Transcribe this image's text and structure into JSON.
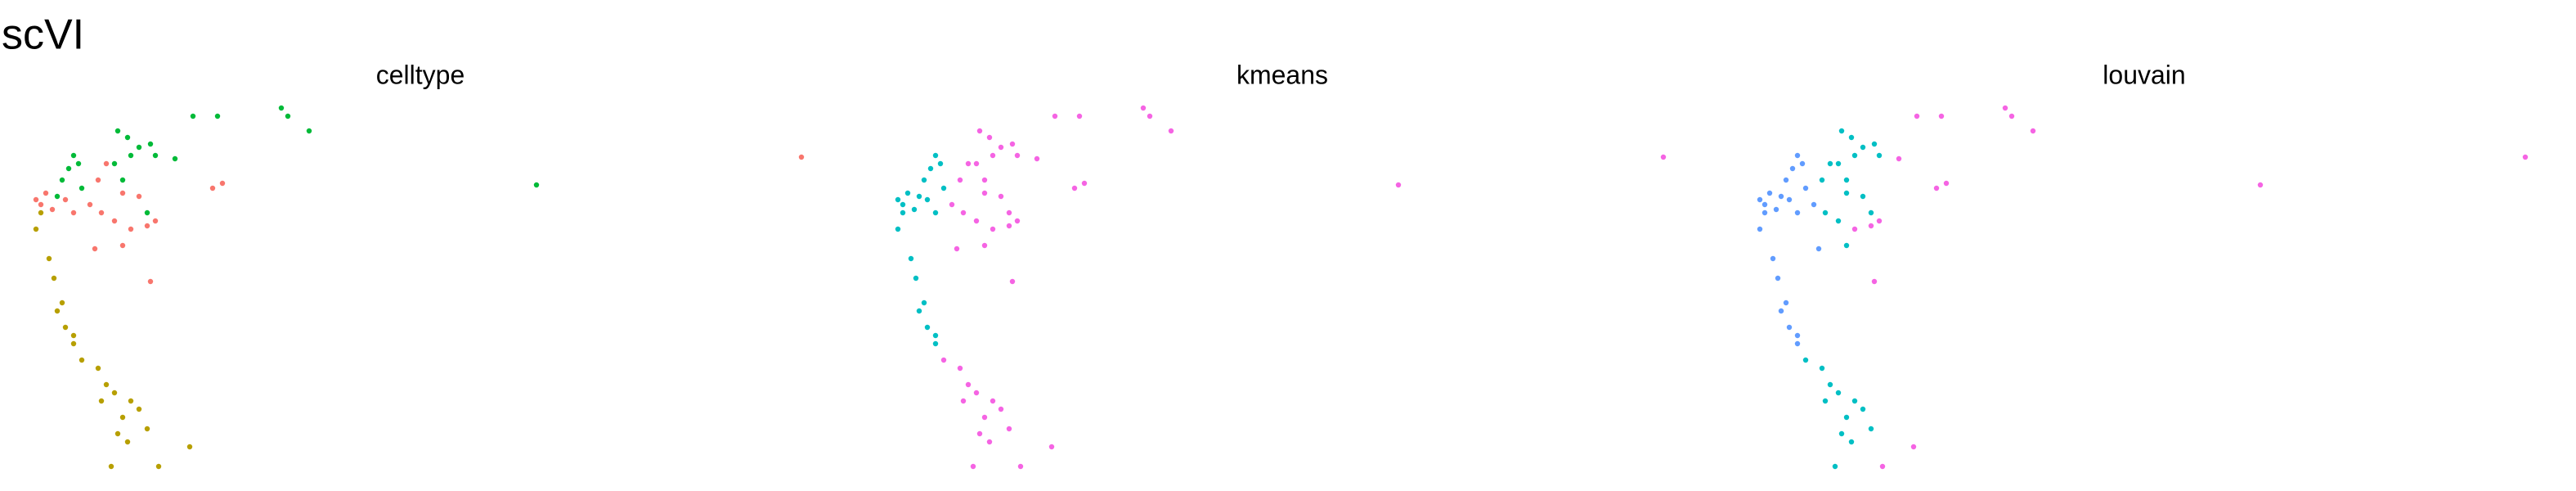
{
  "title": "scVI",
  "chart_data": [
    {
      "type": "scatter",
      "title": "celltype",
      "xlim": [
        0,
        480
      ],
      "ylim": [
        0,
        230
      ],
      "x": [
        98,
        113,
        152,
        156,
        169,
        87,
        308,
        52,
        58,
        65,
        72,
        60,
        75,
        25,
        22,
        28,
        18,
        30,
        15,
        70,
        55,
        50,
        470,
        110,
        116,
        45,
        40,
        55,
        65,
        35,
        42,
        50,
        60,
        70,
        75,
        72,
        38,
        55,
        8,
        5,
        12,
        20,
        2,
        25,
        5,
        2,
        10,
        13,
        18,
        20,
        25,
        30,
        40,
        45,
        50,
        60,
        65,
        55,
        52,
        58,
        48,
        77,
        96,
        70,
        42,
        25,
        15
      ],
      "y": [
        219,
        219,
        224,
        219,
        210,
        193,
        177,
        210,
        206,
        200,
        202,
        195,
        195,
        195,
        187,
        190,
        180,
        175,
        170,
        160,
        180,
        190,
        194,
        175,
        178,
        190,
        180,
        172,
        170,
        165,
        160,
        155,
        150,
        152,
        155,
        118,
        138,
        140,
        172,
        165,
        162,
        168,
        168,
        160,
        160,
        150,
        132,
        120,
        105,
        90,
        80,
        70,
        65,
        55,
        50,
        45,
        40,
        35,
        25,
        20,
        5,
        5,
        17,
        28,
        45,
        85,
        100
      ],
      "palette": [
        "#00BA38",
        "#F8766D",
        "#B79F00"
      ],
      "groups": [
        0,
        0,
        0,
        0,
        0,
        0,
        0,
        0,
        0,
        0,
        0,
        0,
        0,
        0,
        0,
        0,
        0,
        0,
        0,
        0,
        0,
        0,
        1,
        1,
        1,
        1,
        1,
        1,
        1,
        1,
        1,
        1,
        1,
        1,
        1,
        1,
        1,
        1,
        1,
        1,
        1,
        1,
        1,
        1,
        2,
        2,
        2,
        2,
        2,
        2,
        2,
        2,
        2,
        2,
        2,
        2,
        2,
        2,
        2,
        2,
        2,
        2,
        2,
        2,
        2,
        2,
        2
      ]
    },
    {
      "type": "scatter",
      "title": "kmeans",
      "xlim": [
        0,
        480
      ],
      "ylim": [
        0,
        230
      ],
      "x": [
        98,
        113,
        152,
        156,
        169,
        87,
        308,
        52,
        58,
        65,
        72,
        60,
        75,
        25,
        22,
        28,
        18,
        30,
        15,
        70,
        55,
        50,
        470,
        110,
        116,
        45,
        40,
        55,
        65,
        35,
        42,
        50,
        60,
        70,
        75,
        72,
        38,
        55,
        8,
        5,
        12,
        20,
        2,
        25,
        5,
        2,
        10,
        13,
        18,
        20,
        25,
        30,
        40,
        45,
        50,
        60,
        65,
        55,
        52,
        58,
        48,
        77,
        96,
        70,
        42,
        25,
        15
      ],
      "y": [
        219,
        219,
        224,
        219,
        210,
        193,
        177,
        210,
        206,
        200,
        202,
        195,
        195,
        195,
        187,
        190,
        180,
        175,
        170,
        160,
        180,
        190,
        194,
        175,
        178,
        190,
        180,
        172,
        170,
        165,
        160,
        155,
        150,
        152,
        155,
        118,
        138,
        140,
        172,
        165,
        162,
        168,
        168,
        160,
        160,
        150,
        132,
        120,
        105,
        90,
        80,
        70,
        65,
        55,
        50,
        45,
        40,
        35,
        25,
        20,
        5,
        5,
        17,
        28,
        45,
        85,
        100
      ],
      "palette": [
        "#00BFC4",
        "#F564E3"
      ],
      "groups": [
        1,
        1,
        1,
        1,
        1,
        1,
        1,
        1,
        1,
        1,
        1,
        1,
        1,
        0,
        0,
        0,
        0,
        0,
        0,
        1,
        1,
        1,
        1,
        1,
        1,
        1,
        1,
        1,
        1,
        1,
        1,
        1,
        1,
        1,
        1,
        1,
        1,
        1,
        0,
        0,
        0,
        0,
        0,
        0,
        0,
        0,
        0,
        0,
        0,
        0,
        0,
        1,
        1,
        1,
        1,
        1,
        1,
        1,
        1,
        1,
        1,
        1,
        1,
        1,
        1,
        0,
        0
      ]
    },
    {
      "type": "scatter",
      "title": "louvain",
      "xlim": [
        0,
        480
      ],
      "ylim": [
        0,
        230
      ],
      "x": [
        98,
        113,
        152,
        156,
        169,
        87,
        308,
        52,
        58,
        65,
        72,
        60,
        75,
        25,
        22,
        28,
        18,
        30,
        15,
        70,
        55,
        50,
        470,
        110,
        116,
        45,
        40,
        55,
        65,
        35,
        42,
        50,
        60,
        70,
        75,
        72,
        38,
        55,
        8,
        5,
        12,
        20,
        2,
        25,
        5,
        2,
        10,
        13,
        18,
        20,
        25,
        30,
        40,
        45,
        50,
        60,
        65,
        55,
        52,
        58,
        48,
        77,
        96,
        70,
        42,
        25,
        15
      ],
      "y": [
        219,
        219,
        224,
        219,
        210,
        193,
        177,
        210,
        206,
        200,
        202,
        195,
        195,
        195,
        187,
        190,
        180,
        175,
        170,
        160,
        180,
        190,
        194,
        175,
        178,
        190,
        180,
        172,
        170,
        165,
        160,
        155,
        150,
        152,
        155,
        118,
        138,
        140,
        172,
        165,
        162,
        168,
        168,
        160,
        160,
        150,
        132,
        120,
        105,
        90,
        80,
        70,
        65,
        55,
        50,
        45,
        40,
        35,
        25,
        20,
        5,
        5,
        17,
        28,
        45,
        85,
        100
      ],
      "palette": [
        "#619CFF",
        "#00BFC4",
        "#F564E3"
      ],
      "groups": [
        2,
        2,
        2,
        2,
        2,
        2,
        2,
        1,
        1,
        1,
        1,
        1,
        1,
        0,
        0,
        0,
        0,
        0,
        0,
        1,
        1,
        1,
        2,
        2,
        2,
        1,
        1,
        1,
        1,
        0,
        1,
        1,
        2,
        2,
        2,
        2,
        0,
        1,
        0,
        0,
        0,
        0,
        0,
        0,
        0,
        0,
        0,
        0,
        0,
        0,
        0,
        1,
        1,
        1,
        1,
        1,
        1,
        1,
        1,
        1,
        1,
        2,
        2,
        1,
        1,
        0,
        0
      ]
    }
  ]
}
